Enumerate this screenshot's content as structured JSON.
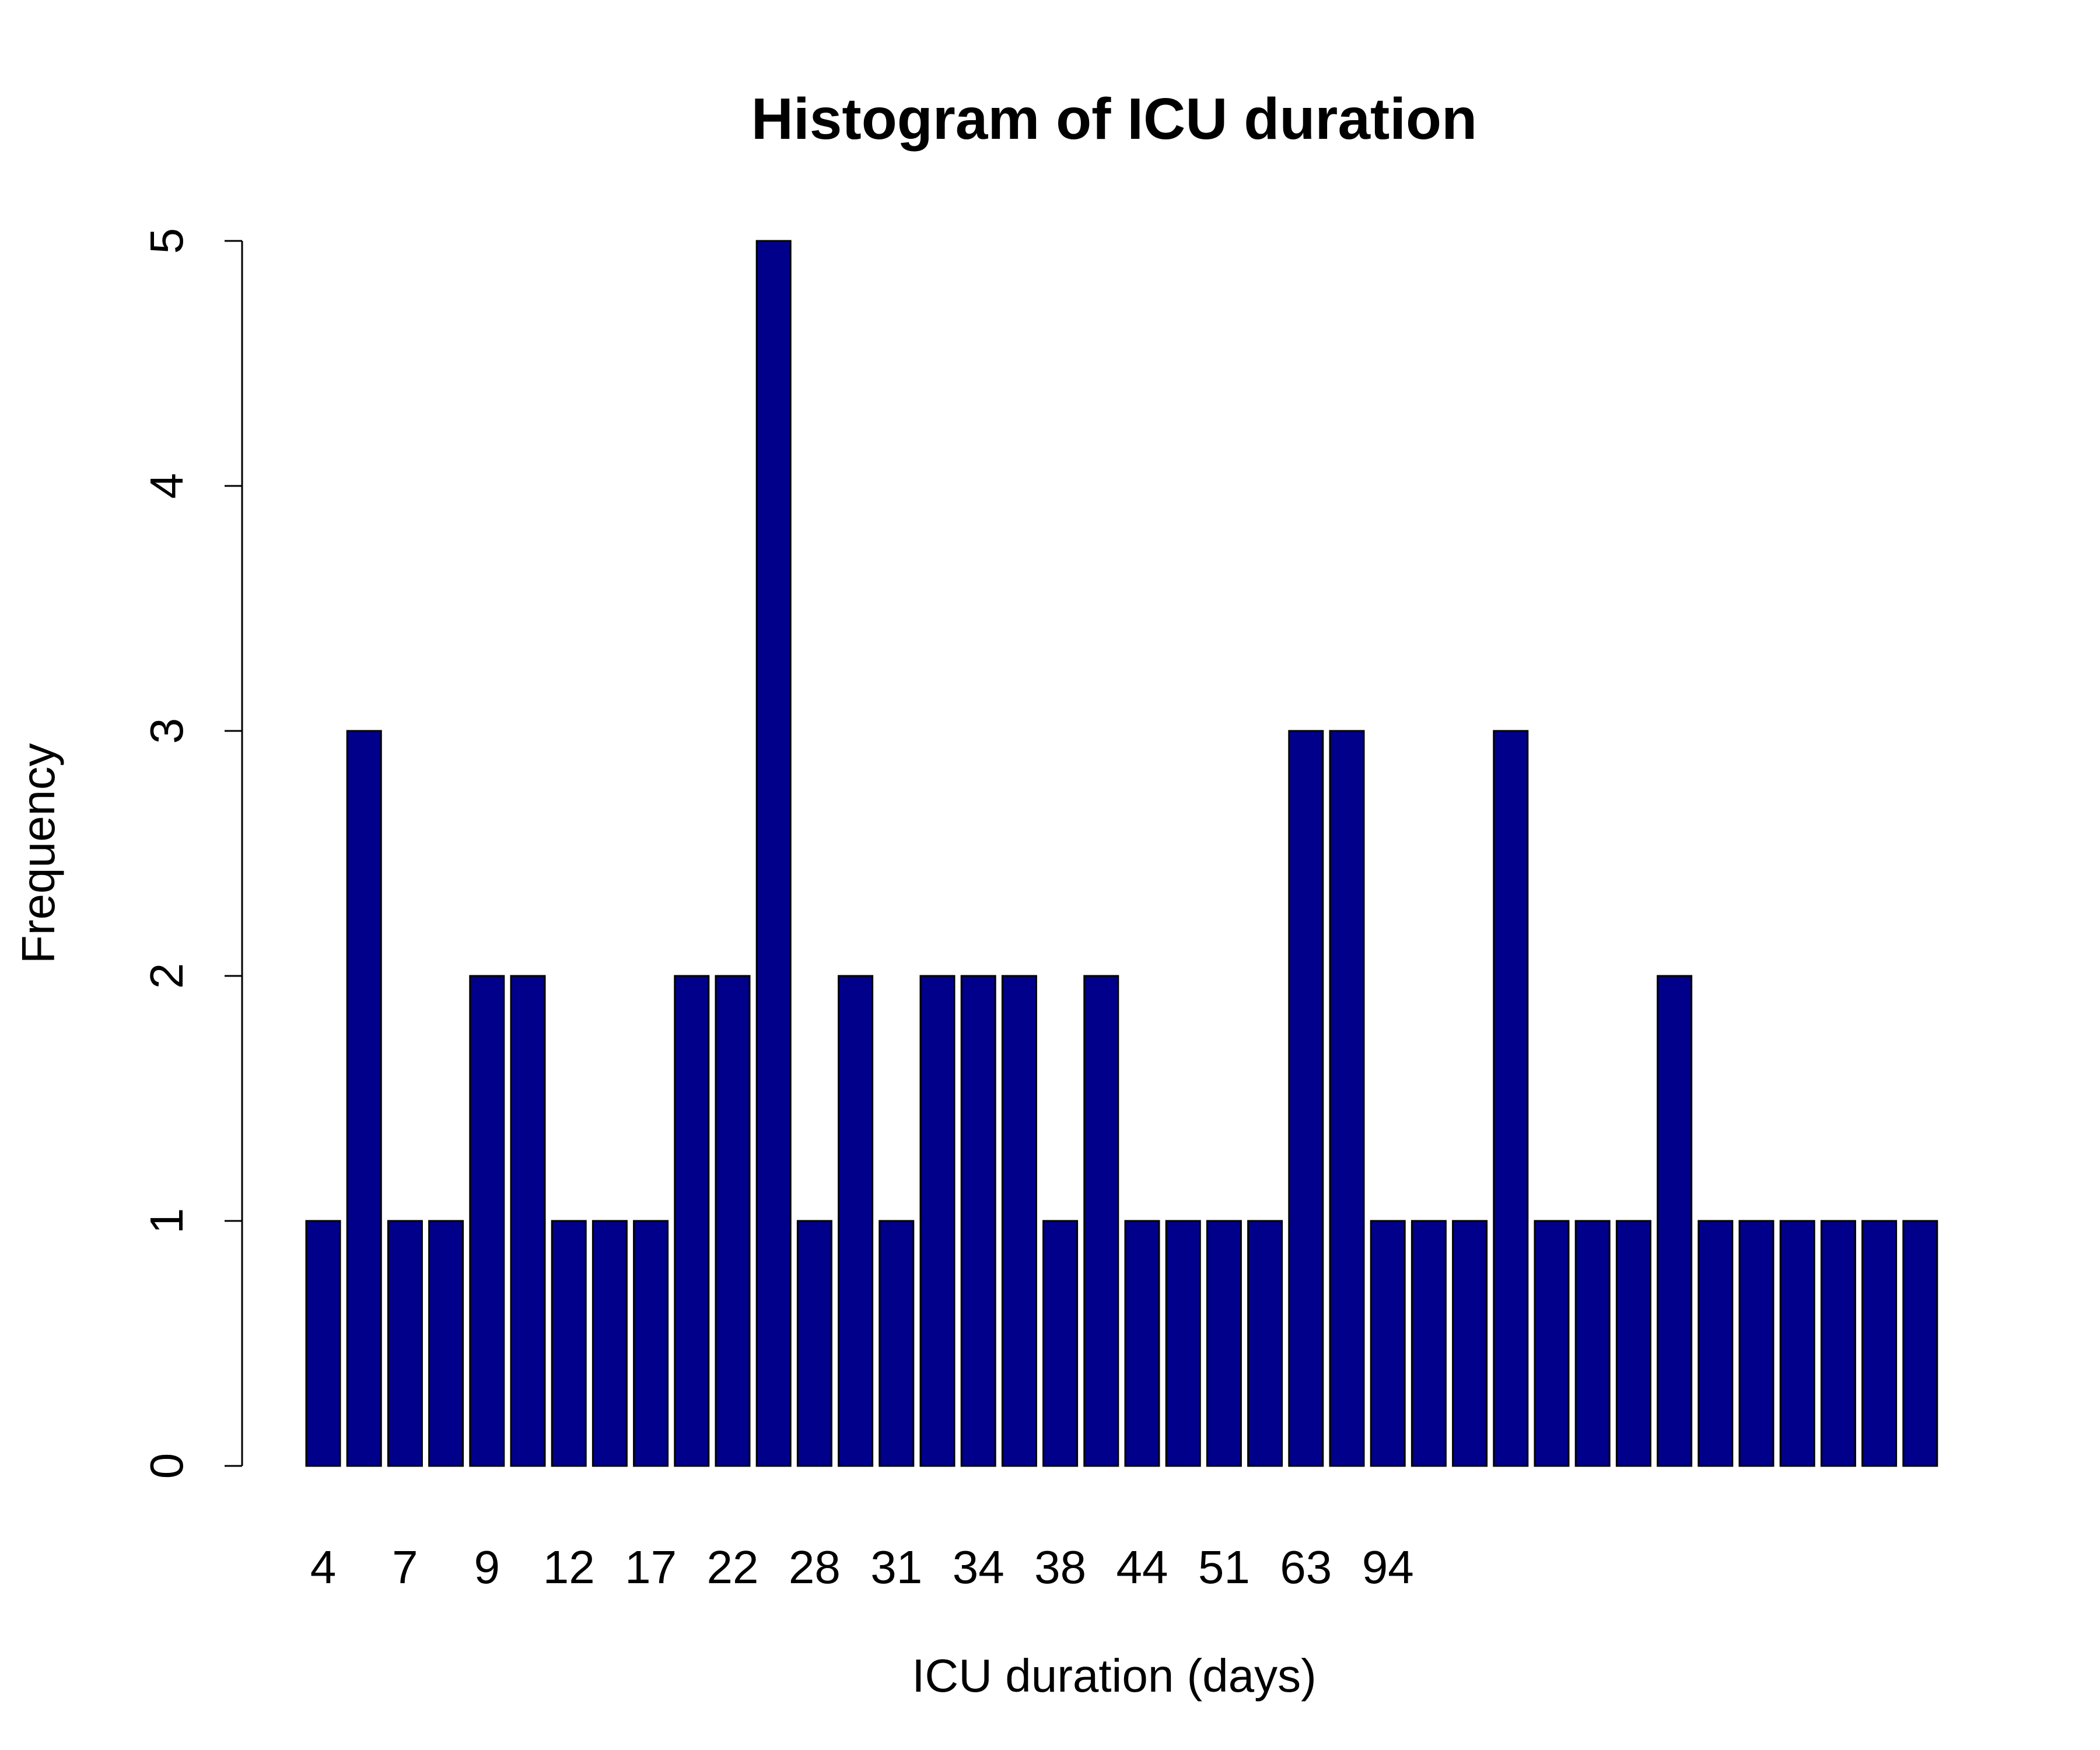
{
  "chart_data": {
    "type": "bar",
    "title": "Histogram of ICU duration",
    "xlabel": "ICU duration (days)",
    "ylabel": "Frequency",
    "ylim": [
      0,
      5
    ],
    "yticks": [
      "0",
      "1",
      "2",
      "3",
      "4",
      "5"
    ],
    "grid": false,
    "legend": "none",
    "bar_color": "#00008B",
    "bar_edge_color": "#000000",
    "categories": [
      "4",
      "",
      "7",
      "",
      "9",
      "",
      "12",
      "",
      "17",
      "",
      "22",
      "",
      "28",
      "",
      "31",
      "",
      "34",
      "",
      "38",
      "",
      "44",
      "",
      "51",
      "",
      "63",
      "",
      "94",
      "",
      "",
      "",
      "",
      "",
      "",
      "",
      "",
      "",
      "",
      "",
      "",
      ""
    ],
    "visible_x_ticks": [
      "4",
      "7",
      "9",
      "12",
      "17",
      "22",
      "28",
      "31",
      "34",
      "38",
      "44",
      "51",
      "63",
      "94"
    ],
    "values": [
      1,
      3,
      1,
      1,
      2,
      2,
      1,
      1,
      1,
      2,
      2,
      5,
      1,
      2,
      1,
      2,
      2,
      2,
      1,
      2,
      1,
      1,
      1,
      1,
      3,
      3,
      1,
      1,
      1,
      3,
      1,
      1,
      1,
      2,
      1,
      1,
      1,
      1,
      1,
      1
    ]
  }
}
